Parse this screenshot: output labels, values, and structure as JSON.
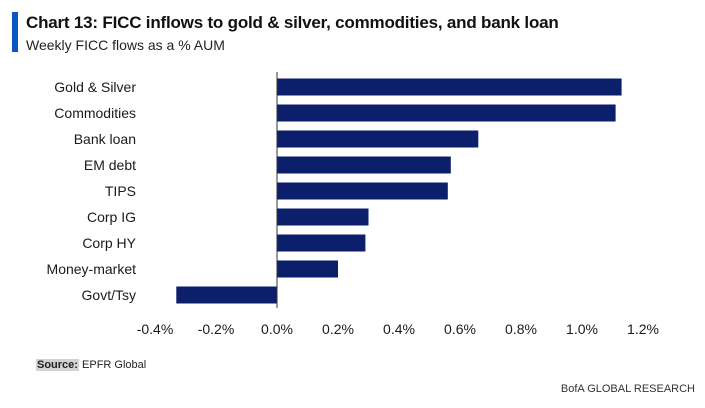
{
  "header": {
    "title": "Chart 13: FICC inflows to gold & silver, commodities, and bank loan",
    "subtitle": "Weekly FICC flows as a % AUM"
  },
  "footer": {
    "source_label": "Source:",
    "source_text": " EPFR Global",
    "brand": "BofA GLOBAL RESEARCH"
  },
  "colors": {
    "bar": "#0b1f6b",
    "accent": "#0a57c4",
    "axis_line": "#333333"
  },
  "chart_data": {
    "type": "bar",
    "orientation": "horizontal",
    "title": "Chart 13: FICC inflows to gold & silver, commodities, and bank loan",
    "subtitle": "Weekly FICC flows as a % AUM",
    "categories": [
      "Gold & Silver",
      "Commodities",
      "Bank loan",
      "EM debt",
      "TIPS",
      "Corp IG",
      "Corp HY",
      "Money-market",
      "Govt/Tsy"
    ],
    "values": [
      1.13,
      1.11,
      0.66,
      0.57,
      0.56,
      0.3,
      0.29,
      0.2,
      -0.33
    ],
    "value_unit": "%",
    "xlim": [
      -0.4,
      1.2
    ],
    "xticks": [
      -0.4,
      -0.2,
      0.0,
      0.2,
      0.4,
      0.6,
      0.8,
      1.0,
      1.2
    ],
    "xtick_labels": [
      "-0.4%",
      "-0.2%",
      "0.0%",
      "0.2%",
      "0.4%",
      "0.6%",
      "0.8%",
      "1.0%",
      "1.2%"
    ],
    "grid": false,
    "legend": "none"
  }
}
